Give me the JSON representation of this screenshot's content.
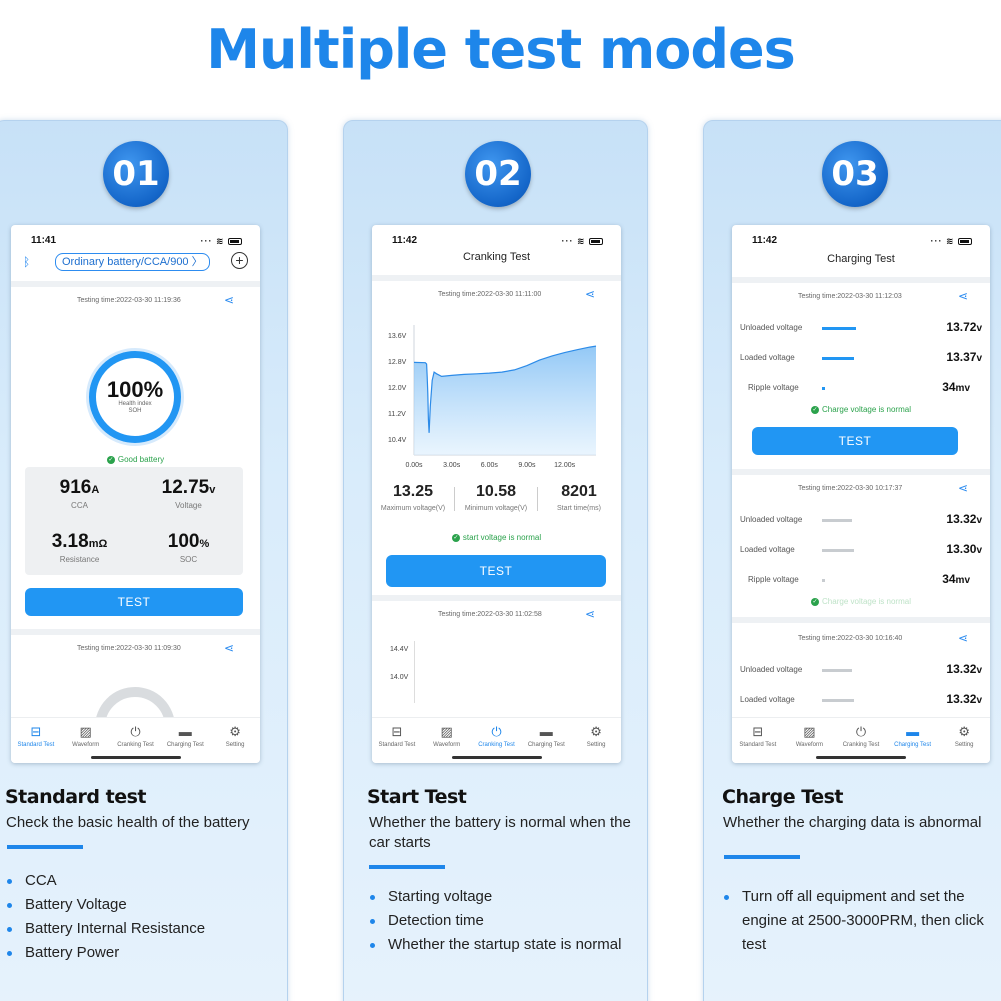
{
  "headline": "Multiple test modes",
  "common": {
    "tabs": [
      "Standard Test",
      "Waveform",
      "Cranking Test",
      "Charging Test",
      "Setting"
    ]
  },
  "panel1": {
    "badge": "01",
    "phone": {
      "time": "11:41",
      "battery_type": "Ordinary battery/CCA/900",
      "testing_time_1": "Testing time:2022-03-30 11:19:36",
      "soh_percent": "100%",
      "health_index": "Health index",
      "soh_label": "SOH",
      "good_text": "Good battery",
      "cca_value": "916",
      "cca_unit": "A",
      "cca_label": "CCA",
      "voltage_value": "12.75",
      "voltage_unit": "v",
      "voltage_label": "Voltage",
      "resistance_value": "3.18",
      "resistance_unit": "mΩ",
      "resistance_label": "Resistance",
      "soc_value": "100",
      "soc_unit": "%",
      "soc_label": "SOC",
      "test_label": "TEST",
      "testing_time_2": "Testing time:2022-03-30 11:09:30",
      "active_tab": 0
    },
    "title": "Standard test",
    "subtitle": "Check the basic health of the battery",
    "bullets": [
      "CCA",
      "Battery Voltage",
      "Battery Internal Resistance",
      "Battery Power"
    ]
  },
  "panel2": {
    "badge": "02",
    "phone": {
      "time": "11:42",
      "nav_title": "Cranking Test",
      "testing_time_1": "Testing time:2022-03-30 11:11:00",
      "max_voltage": "13.25",
      "max_label": "Maximum voltage(V)",
      "min_voltage": "10.58",
      "min_label": "Minimum voltage(V)",
      "start_time": "8201",
      "start_label": "Start time(ms)",
      "ok_text": "start voltage is normal",
      "test_label": "TEST",
      "testing_time_2": "Testing time:2022-03-30 11:02:58",
      "chart2_y": [
        "14.4V",
        "14.0V"
      ],
      "active_tab": 2
    },
    "title": "Start Test",
    "subtitle": "Whether the battery is normal when the car starts",
    "bullets": [
      "Starting voltage",
      "Detection time",
      "Whether the startup state is normal"
    ]
  },
  "panel3": {
    "badge": "03",
    "phone": {
      "time": "11:42",
      "nav_title": "Charging Test",
      "records": [
        {
          "time": "Testing time:2022-03-30 11:12:03",
          "unloaded": "13.72",
          "loaded": "13.37",
          "ripple": "34",
          "ok": "Charge voltage is normal"
        },
        {
          "time": "Testing time:2022-03-30 10:17:37",
          "unloaded": "13.32",
          "loaded": "13.30",
          "ripple": "34",
          "ok": "Charge voltage is normal"
        },
        {
          "time": "Testing time:2022-03-30 10:16:40",
          "unloaded": "13.32",
          "loaded": "13.32"
        }
      ],
      "unloaded_label": "Unloaded voltage",
      "loaded_label": "Loaded voltage",
      "ripple_label": "Ripple   voltage",
      "v_unit": "v",
      "mv_unit": "mv",
      "test_label": "TEST",
      "active_tab": 3
    },
    "title": "Charge Test",
    "subtitle": "Whether the charging data is abnormal",
    "bullets": [
      "Turn off all equipment and set the engine at 2500-3000PRM, then click test"
    ]
  },
  "chart_data": {
    "type": "line",
    "title": "",
    "xlabel": "",
    "ylabel": "",
    "x_ticks": [
      "0.00s",
      "3.00s",
      "6.00s",
      "9.00s",
      "12.00s"
    ],
    "y_ticks": [
      "13.6V",
      "12.8V",
      "12.0V",
      "11.2V",
      "10.4V"
    ],
    "xlim": [
      0,
      14.5
    ],
    "ylim": [
      9.9,
      13.9
    ],
    "series": [
      {
        "x": [
          0,
          0.9,
          1.0,
          1.05,
          1.1,
          1.15,
          1.2,
          1.3,
          1.45,
          1.6,
          1.8,
          2.2,
          3,
          4,
          5,
          6,
          7,
          8,
          9,
          10,
          11,
          12,
          13,
          14,
          14.5
        ],
        "y": [
          12.75,
          12.74,
          12.7,
          12.3,
          11.8,
          11.0,
          10.58,
          11.4,
          12.2,
          12.45,
          12.4,
          12.32,
          12.35,
          12.38,
          12.4,
          12.42,
          12.45,
          12.52,
          12.65,
          12.82,
          12.95,
          13.05,
          13.14,
          13.22,
          13.25
        ]
      }
    ]
  }
}
